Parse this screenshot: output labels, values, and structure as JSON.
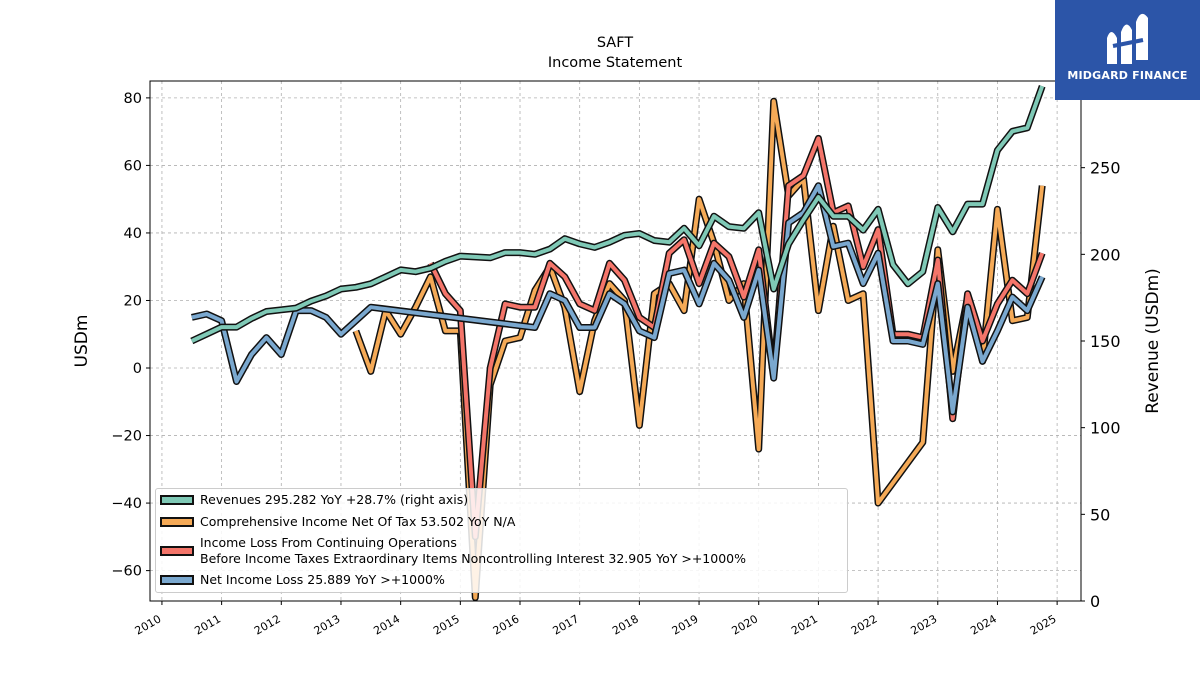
{
  "brand": {
    "name": "MIDGARD FINANCE",
    "color": "#2c55a8"
  },
  "chart_data": {
    "type": "line",
    "title": "SAFT",
    "subtitle": "Income Statement",
    "ylabel": "USDm",
    "ylabel_right": "Revenue (USDm)",
    "ylim": [
      -69,
      85
    ],
    "ylim_right": [
      0,
      300
    ],
    "yticks": [
      -60,
      -40,
      -20,
      0,
      20,
      40,
      60,
      80
    ],
    "yticks_right": [
      0,
      50,
      100,
      150,
      200,
      250
    ],
    "xlim": [
      2009.8,
      2025.4
    ],
    "xticks": [
      "2010",
      "2011",
      "2012",
      "2013",
      "2014",
      "2015",
      "2016",
      "2017",
      "2018",
      "2019",
      "2020",
      "2021",
      "2022",
      "2023",
      "2024",
      "2025"
    ],
    "grid": true,
    "legend_position": "bottom-left",
    "series": [
      {
        "name": "Revenues",
        "legend": "Revenues  295.282 YoY +28.7% (right axis)",
        "axis": "right",
        "color": "#7fc9b6",
        "points": [
          [
            2010.5,
            150
          ],
          [
            2010.75,
            154
          ],
          [
            2011.0,
            158
          ],
          [
            2011.25,
            158
          ],
          [
            2011.5,
            163
          ],
          [
            2011.75,
            167
          ],
          [
            2012.0,
            168
          ],
          [
            2012.25,
            169
          ],
          [
            2012.5,
            173
          ],
          [
            2012.75,
            176
          ],
          [
            2013.0,
            180
          ],
          [
            2013.25,
            181
          ],
          [
            2013.5,
            183
          ],
          [
            2013.75,
            187
          ],
          [
            2014.0,
            191
          ],
          [
            2014.25,
            190
          ],
          [
            2014.5,
            192
          ],
          [
            2014.75,
            196
          ],
          [
            2015.0,
            199
          ],
          [
            2015.5,
            198
          ],
          [
            2015.75,
            201
          ],
          [
            2016.0,
            201
          ],
          [
            2016.25,
            200
          ],
          [
            2016.5,
            203
          ],
          [
            2016.75,
            209
          ],
          [
            2017.0,
            206
          ],
          [
            2017.25,
            204
          ],
          [
            2017.5,
            207
          ],
          [
            2017.75,
            211
          ],
          [
            2018.0,
            212
          ],
          [
            2018.25,
            208
          ],
          [
            2018.5,
            207
          ],
          [
            2018.75,
            215
          ],
          [
            2019.0,
            205
          ],
          [
            2019.25,
            222
          ],
          [
            2019.5,
            216
          ],
          [
            2019.75,
            215
          ],
          [
            2020.0,
            224
          ],
          [
            2020.25,
            180
          ],
          [
            2020.5,
            206
          ],
          [
            2020.75,
            220
          ],
          [
            2021.0,
            233
          ],
          [
            2021.25,
            222
          ],
          [
            2021.5,
            222
          ],
          [
            2021.75,
            214
          ],
          [
            2022.0,
            226
          ],
          [
            2022.25,
            194
          ],
          [
            2022.5,
            183
          ],
          [
            2022.75,
            190
          ],
          [
            2023.0,
            227
          ],
          [
            2023.25,
            213
          ],
          [
            2023.5,
            229
          ],
          [
            2023.75,
            229
          ],
          [
            2024.0,
            260
          ],
          [
            2024.25,
            271
          ],
          [
            2024.5,
            273
          ],
          [
            2024.75,
            297
          ]
        ]
      },
      {
        "name": "Comprehensive Income Net Of Tax",
        "legend": "Comprehensive Income Net Of Tax  53.502 YoY N/A",
        "axis": "left",
        "color": "#f5aa57",
        "points": [
          [
            2013.25,
            11
          ],
          [
            2013.5,
            -1
          ],
          [
            2013.75,
            17
          ],
          [
            2014.0,
            10
          ],
          [
            2014.25,
            18
          ],
          [
            2014.5,
            27
          ],
          [
            2014.75,
            11
          ],
          [
            2015.0,
            11
          ],
          [
            2015.25,
            -68
          ],
          [
            2015.5,
            -5
          ],
          [
            2015.75,
            8
          ],
          [
            2016.0,
            9
          ],
          [
            2016.25,
            23
          ],
          [
            2016.5,
            30
          ],
          [
            2016.75,
            18
          ],
          [
            2017.0,
            -7
          ],
          [
            2017.25,
            14
          ],
          [
            2017.5,
            25
          ],
          [
            2017.75,
            20
          ],
          [
            2018.0,
            -17
          ],
          [
            2018.25,
            22
          ],
          [
            2018.5,
            25
          ],
          [
            2018.75,
            17
          ],
          [
            2019.0,
            50
          ],
          [
            2019.25,
            37
          ],
          [
            2019.5,
            20
          ],
          [
            2019.75,
            25
          ],
          [
            2020.0,
            -24
          ],
          [
            2020.25,
            79
          ],
          [
            2020.5,
            51
          ],
          [
            2020.75,
            56
          ],
          [
            2021.0,
            17
          ],
          [
            2021.25,
            42
          ],
          [
            2021.5,
            20
          ],
          [
            2021.75,
            22
          ],
          [
            2022.0,
            -40
          ],
          [
            2022.25,
            -34
          ],
          [
            2022.5,
            -28
          ],
          [
            2022.75,
            -22
          ],
          [
            2023.0,
            35
          ],
          [
            2023.25,
            -1
          ],
          [
            2023.5,
            21
          ],
          [
            2023.75,
            2
          ],
          [
            2024.0,
            47
          ],
          [
            2024.25,
            14
          ],
          [
            2024.5,
            15
          ],
          [
            2024.75,
            54
          ]
        ]
      },
      {
        "name": "Income Loss From Continuing Operations Before Income Taxes Extraordinary Items Noncontrolling Interest",
        "legend": "Income Loss From Continuing Operations\nBefore Income Taxes Extraordinary Items Noncontrolling Interest  32.905 YoY >+1000%",
        "axis": "left",
        "color": "#f4756a",
        "points": [
          [
            2014.5,
            31
          ],
          [
            2014.75,
            22
          ],
          [
            2015.0,
            17
          ],
          [
            2015.25,
            -50
          ],
          [
            2015.5,
            0
          ],
          [
            2015.75,
            19
          ],
          [
            2016.0,
            18
          ],
          [
            2016.25,
            18
          ],
          [
            2016.5,
            31
          ],
          [
            2016.75,
            27
          ],
          [
            2017.0,
            19
          ],
          [
            2017.25,
            17
          ],
          [
            2017.5,
            31
          ],
          [
            2017.75,
            26
          ],
          [
            2018.0,
            15
          ],
          [
            2018.25,
            12
          ],
          [
            2018.5,
            34
          ],
          [
            2018.75,
            38
          ],
          [
            2019.0,
            25
          ],
          [
            2019.25,
            37
          ],
          [
            2019.5,
            33
          ],
          [
            2019.75,
            21
          ],
          [
            2020.0,
            35
          ],
          [
            2020.25,
            -2
          ],
          [
            2020.5,
            54
          ],
          [
            2020.75,
            57
          ],
          [
            2021.0,
            68
          ],
          [
            2021.25,
            46
          ],
          [
            2021.5,
            48
          ],
          [
            2021.75,
            30
          ],
          [
            2022.0,
            41
          ],
          [
            2022.25,
            10
          ],
          [
            2022.5,
            10
          ],
          [
            2022.75,
            9
          ],
          [
            2023.0,
            32
          ],
          [
            2023.25,
            -15
          ],
          [
            2023.5,
            22
          ],
          [
            2023.75,
            8
          ],
          [
            2024.0,
            19
          ],
          [
            2024.25,
            26
          ],
          [
            2024.5,
            22
          ],
          [
            2024.75,
            34
          ]
        ]
      },
      {
        "name": "Net Income Loss",
        "legend": "Net Income Loss  25.889 YoY >+1000%",
        "axis": "left",
        "color": "#7aa8cf",
        "points": [
          [
            2010.5,
            15
          ],
          [
            2010.75,
            16
          ],
          [
            2011.0,
            14
          ],
          [
            2011.25,
            -4
          ],
          [
            2011.5,
            4
          ],
          [
            2011.75,
            9
          ],
          [
            2012.0,
            4
          ],
          [
            2012.25,
            17
          ],
          [
            2012.5,
            17
          ],
          [
            2012.75,
            15
          ],
          [
            2013.0,
            10
          ],
          [
            2013.25,
            14
          ],
          [
            2013.5,
            18
          ],
          [
            2016.25,
            12
          ],
          [
            2016.5,
            22
          ],
          [
            2016.75,
            20
          ],
          [
            2017.0,
            12
          ],
          [
            2017.25,
            12
          ],
          [
            2017.5,
            22
          ],
          [
            2017.75,
            19
          ],
          [
            2018.0,
            11
          ],
          [
            2018.25,
            9
          ],
          [
            2018.5,
            28
          ],
          [
            2018.75,
            29
          ],
          [
            2019.0,
            19
          ],
          [
            2019.25,
            31
          ],
          [
            2019.5,
            26
          ],
          [
            2019.75,
            15
          ],
          [
            2020.0,
            29
          ],
          [
            2020.25,
            -3
          ],
          [
            2020.5,
            43
          ],
          [
            2020.75,
            46
          ],
          [
            2021.0,
            54
          ],
          [
            2021.25,
            36
          ],
          [
            2021.5,
            37
          ],
          [
            2021.75,
            25
          ],
          [
            2022.0,
            34
          ],
          [
            2022.25,
            8
          ],
          [
            2022.5,
            8
          ],
          [
            2022.75,
            7
          ],
          [
            2023.0,
            25
          ],
          [
            2023.25,
            -13
          ],
          [
            2023.5,
            18
          ],
          [
            2023.75,
            2
          ],
          [
            2024.0,
            11
          ],
          [
            2024.25,
            21
          ],
          [
            2024.5,
            17
          ],
          [
            2024.75,
            27
          ]
        ]
      }
    ]
  }
}
